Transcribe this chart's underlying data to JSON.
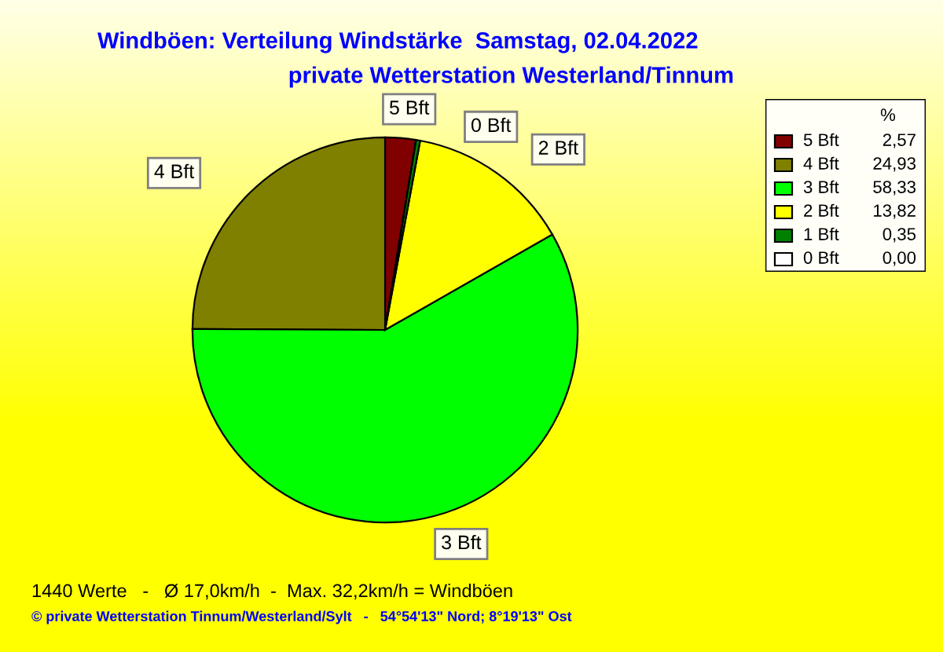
{
  "chart_data": {
    "type": "pie",
    "title": "Windböen: Verteilung Windstärke  Samstag, 02.04.2022",
    "subtitle": "private Wetterstation Westerland/Tinnum",
    "categories": [
      "5 Bft",
      "4 Bft",
      "3 Bft",
      "2 Bft",
      "1 Bft",
      "0 Bft"
    ],
    "values": [
      2.57,
      24.93,
      58.33,
      13.82,
      0.35,
      0.0
    ],
    "value_labels": [
      "2,57",
      "24,93",
      "58,33",
      "13,82",
      "0,35",
      "0,00"
    ],
    "colors": [
      "#800000",
      "#808000",
      "#00ff00",
      "#ffff00",
      "#008000",
      "#ffffff"
    ],
    "legend": "top right",
    "legend_title": "%",
    "annotations": [
      {
        "text": "5 Bft",
        "x": "5 Bft"
      },
      {
        "text": "0 Bft",
        "x": "0 Bft"
      },
      {
        "text": "2 Bft",
        "x": "2 Bft"
      },
      {
        "text": "3 Bft",
        "x": "3 Bft"
      },
      {
        "text": "4 Bft",
        "x": "4 Bft"
      },
      "1440 Werte   -   Ø 17,0km/h  -  Max. 32,2km/h = Windböen",
      "© private Wetterstation Tinnum/Westerland/Sylt   -   54°54'13\" Nord; 8°19'13\" Ost"
    ]
  }
}
